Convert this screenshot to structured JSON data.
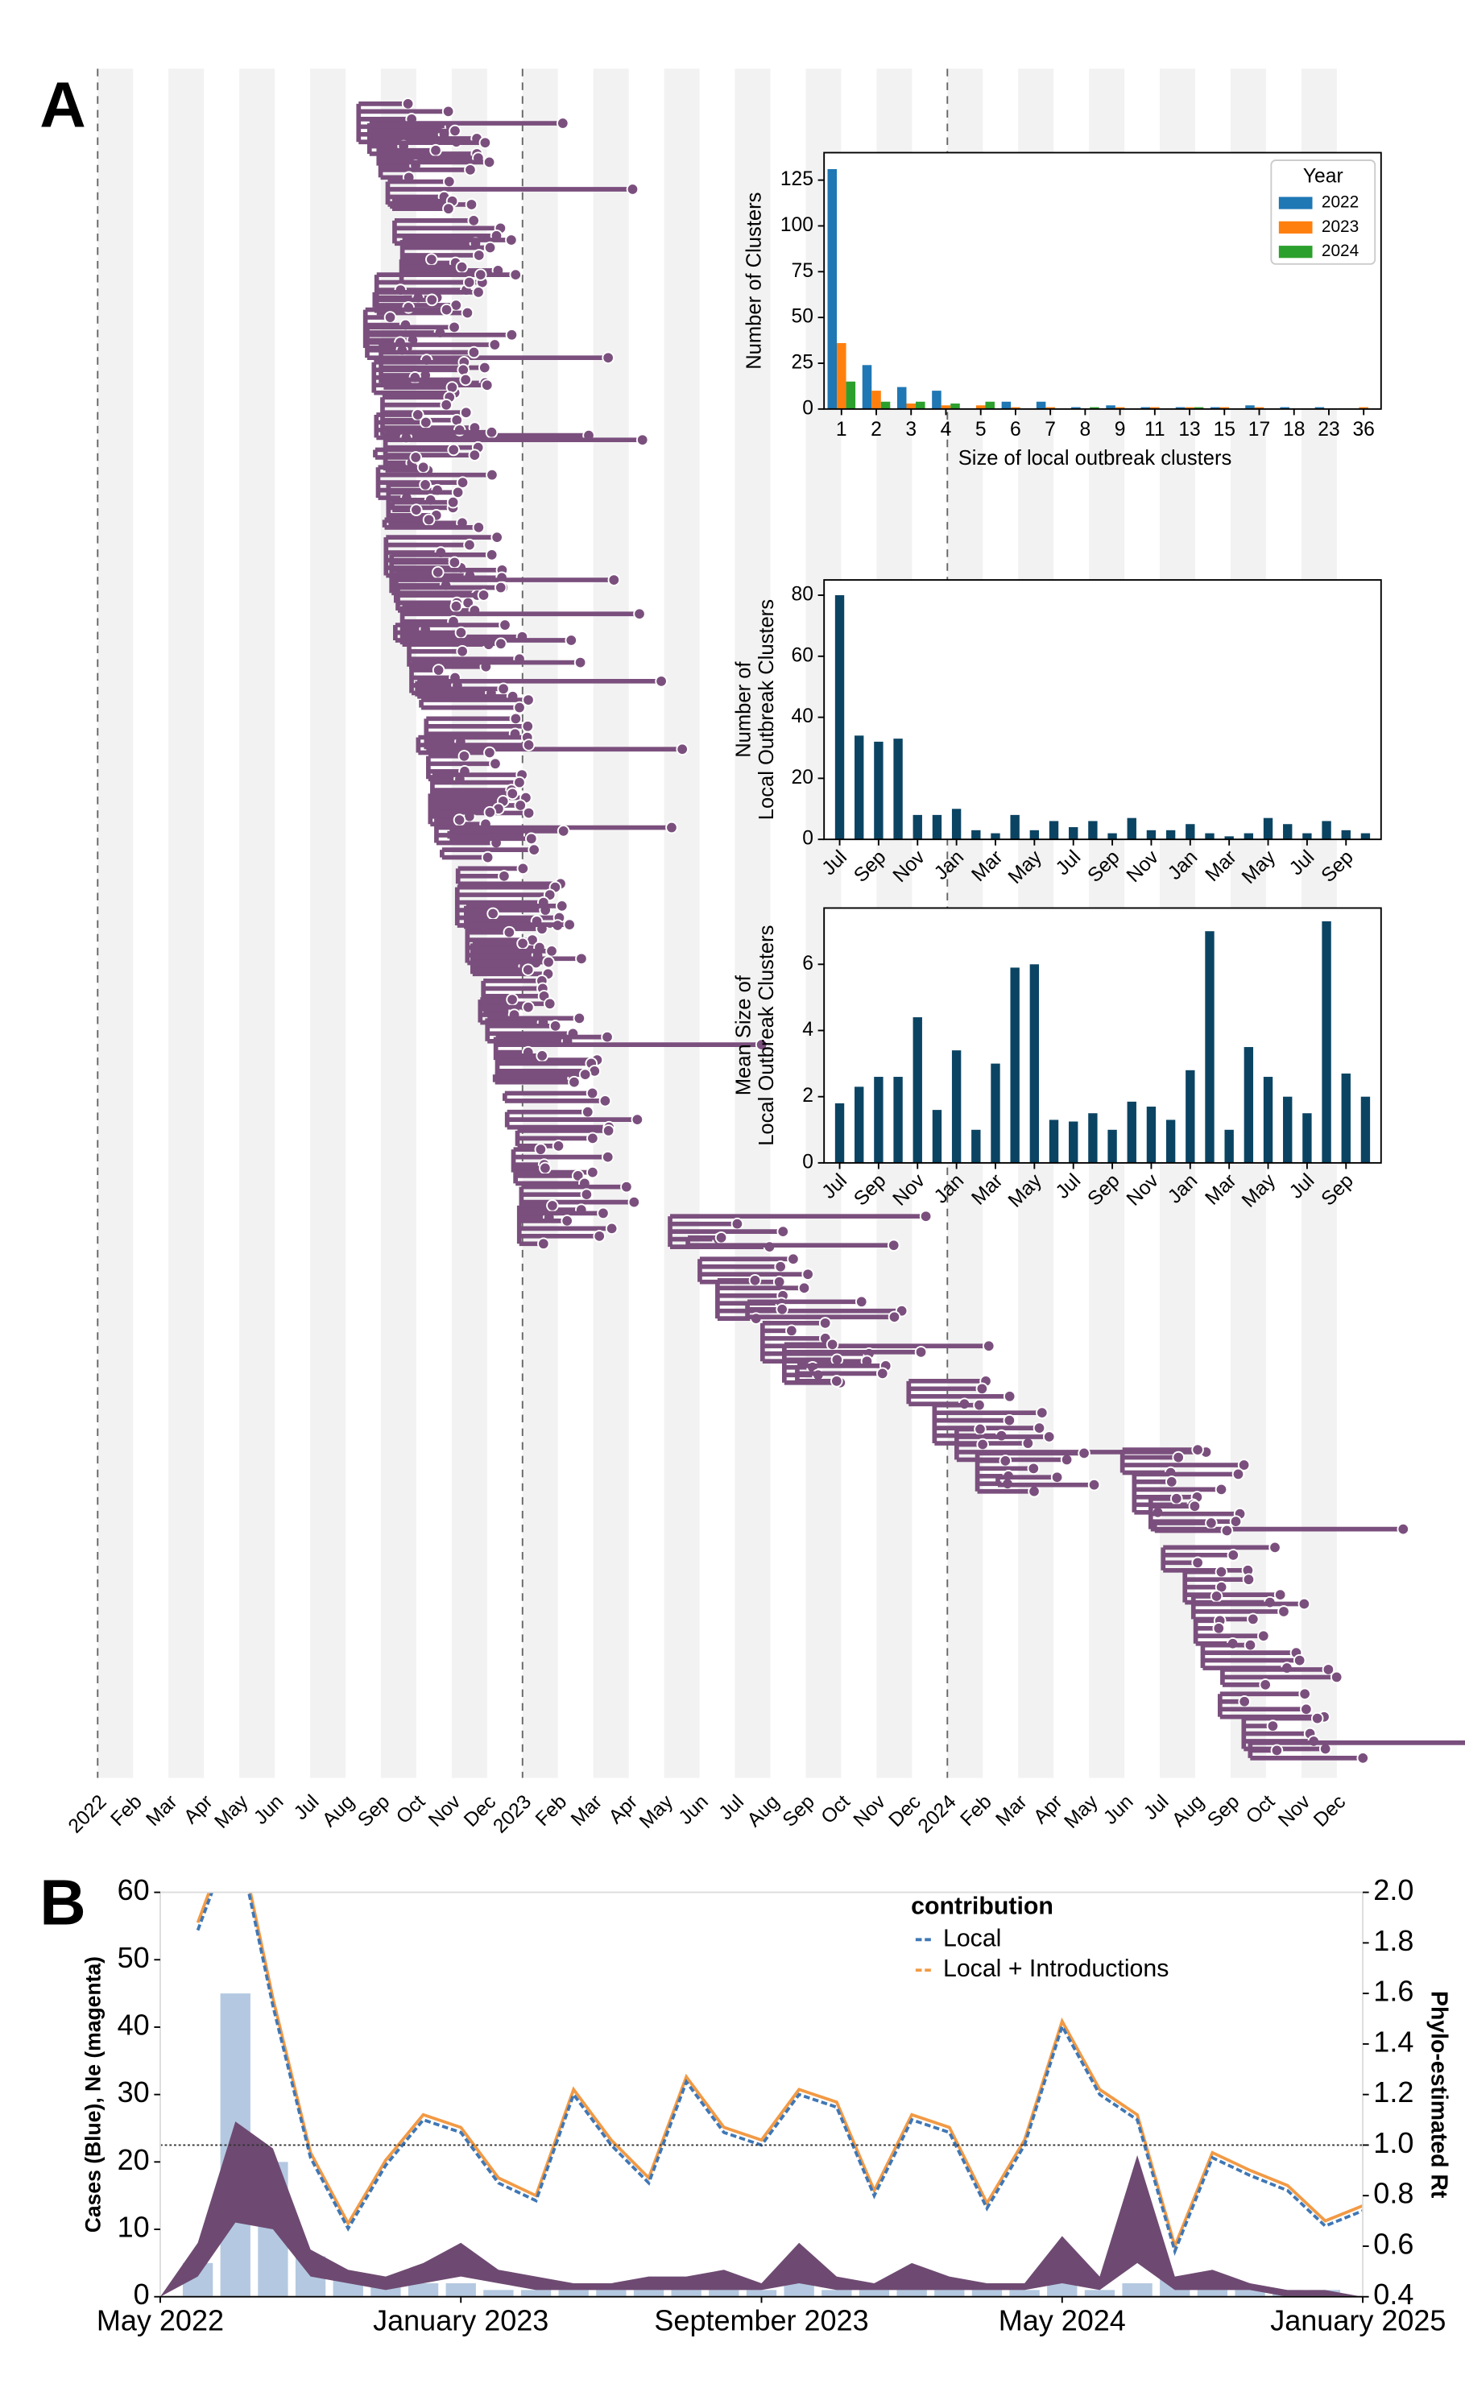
{
  "chart_data": [
    {
      "type": "timeline",
      "panel": "A",
      "color": "#7a4f7d",
      "categories": [
        "2022",
        "Feb",
        "Mar",
        "Apr",
        "May",
        "Jun",
        "Jul",
        "Aug",
        "Sep",
        "Oct",
        "Nov",
        "Dec",
        "2023",
        "Feb",
        "Mar",
        "Apr",
        "May",
        "Jun",
        "Jul",
        "Aug",
        "Sep",
        "Oct",
        "Nov",
        "Dec",
        "2024",
        "Feb",
        "Mar",
        "Apr",
        "May",
        "Jun",
        "Jul",
        "Aug",
        "Sep",
        "Oct",
        "Nov",
        "Dec"
      ]
    },
    {
      "type": "grouped_bar",
      "xlabel": "Size of local outbreak clusters",
      "ylabel": "Number of Clusters",
      "legend_title": "Year",
      "legend": "upper right",
      "categories": [
        1,
        2,
        3,
        4,
        5,
        6,
        7,
        8,
        9,
        11,
        13,
        15,
        17,
        18,
        23,
        36
      ],
      "series": [
        {
          "name": "2022",
          "color": "#1f77b4",
          "values": [
            131,
            24,
            12,
            10,
            0,
            4,
            4,
            1,
            2,
            1,
            1,
            1,
            2,
            1,
            1,
            0
          ]
        },
        {
          "name": "2023",
          "color": "#ff7f0e",
          "values": [
            36,
            10,
            3,
            2,
            2,
            1,
            1,
            0,
            1,
            1,
            1,
            1,
            1,
            0,
            0,
            1
          ]
        },
        {
          "name": "2024",
          "color": "#2ca02c",
          "values": [
            15,
            4,
            4,
            3,
            4,
            0,
            0,
            1,
            0,
            0,
            1,
            0,
            0,
            0,
            0,
            0
          ]
        }
      ],
      "ylim": [
        0,
        140
      ],
      "yticks": [
        0,
        25,
        50,
        75,
        100,
        125
      ]
    },
    {
      "type": "bar",
      "ylabel": [
        "Number of",
        "Local Outbreak Clusters"
      ],
      "color": "#0b4463",
      "categories": [
        "Jul",
        null,
        "Sep",
        null,
        "Nov",
        null,
        "Jan",
        null,
        "Mar",
        null,
        "May",
        null,
        "Jul",
        null,
        "Sep",
        null,
        "Nov",
        null,
        "Jan",
        null,
        "Mar",
        null,
        "May",
        null,
        "Jul",
        null,
        "Sep",
        null
      ],
      "values": [
        80,
        34,
        32,
        33,
        8,
        8,
        10,
        3,
        2,
        8,
        3,
        6,
        4,
        6,
        2,
        7,
        3,
        3,
        5,
        2,
        1,
        2,
        7,
        5,
        2,
        6,
        3,
        2
      ],
      "ylim": [
        0,
        85
      ],
      "yticks": [
        0,
        20,
        40,
        60,
        80
      ]
    },
    {
      "type": "bar",
      "ylabel": [
        "Mean Size of",
        "Local Outbreak Clusters"
      ],
      "color": "#0b4463",
      "categories": [
        "Jul",
        null,
        "Sep",
        null,
        "Nov",
        null,
        "Jan",
        null,
        "Mar",
        null,
        "May",
        null,
        "Jul",
        null,
        "Sep",
        null,
        "Nov",
        null,
        "Jan",
        null,
        "Mar",
        null,
        "May",
        null,
        "Jul",
        null,
        "Sep",
        null
      ],
      "values": [
        1.8,
        2.3,
        2.6,
        2.6,
        4.4,
        1.6,
        3.4,
        1.0,
        3.0,
        5.9,
        6.0,
        1.3,
        1.25,
        1.5,
        1.0,
        1.85,
        1.7,
        1.3,
        2.8,
        7.0,
        1.0,
        3.5,
        2.6,
        2.0,
        1.5,
        7.3,
        2.7,
        2.0
      ],
      "ylim": [
        0,
        7.7
      ],
      "yticks": [
        0,
        2,
        4,
        6
      ]
    },
    {
      "type": "line",
      "panel": "B",
      "ylabel": "Cases (Blue), Ne (magenta)",
      "y2label": "Phylo-estimated Rt",
      "legend_title": "contribution",
      "legend": "upper center",
      "x": [
        "2022-05",
        "2022-06",
        "2022-07",
        "2022-08",
        "2022-09",
        "2022-10",
        "2022-11",
        "2022-12",
        "2023-01",
        "2023-02",
        "2023-03",
        "2023-04",
        "2023-05",
        "2023-06",
        "2023-07",
        "2023-08",
        "2023-09",
        "2023-10",
        "2023-11",
        "2023-12",
        "2024-01",
        "2024-02",
        "2024-03",
        "2024-04",
        "2024-05",
        "2024-06",
        "2024-07",
        "2024-08",
        "2024-09",
        "2024-10",
        "2024-11",
        "2024-12",
        "2025-01"
      ],
      "series": [
        {
          "name": "Local",
          "color": "#3f77b5",
          "axis": "y2",
          "values": [
            null,
            1.85,
            2.25,
            1.55,
            0.95,
            0.67,
            0.92,
            1.1,
            1.05,
            0.85,
            0.78,
            1.2,
            1.0,
            0.85,
            1.25,
            1.05,
            1.0,
            1.2,
            1.15,
            0.8,
            1.1,
            1.05,
            0.75,
            1.0,
            1.47,
            1.2,
            1.1,
            0.58,
            0.95,
            0.88,
            0.82,
            0.68,
            0.74
          ]
        },
        {
          "name": "Local + Introductions",
          "color": "#f29a45",
          "axis": "y2",
          "values": [
            null,
            1.88,
            2.28,
            1.58,
            0.97,
            0.69,
            0.94,
            1.12,
            1.07,
            0.87,
            0.8,
            1.22,
            1.02,
            0.87,
            1.27,
            1.07,
            1.02,
            1.22,
            1.17,
            0.82,
            1.12,
            1.07,
            0.77,
            1.02,
            1.49,
            1.22,
            1.12,
            0.6,
            0.97,
            0.9,
            0.84,
            0.7,
            0.76
          ]
        }
      ],
      "cases": {
        "color": "#a7bfdc",
        "values": [
          0,
          5,
          45,
          20,
          6,
          3,
          2,
          2,
          2,
          1,
          1,
          1,
          1,
          1,
          1,
          1,
          1,
          2,
          1,
          1,
          1,
          1,
          1,
          1,
          2,
          1,
          2,
          3,
          1,
          1,
          1,
          1,
          0
        ]
      },
      "ne": {
        "color": "#6e4a72",
        "upper": [
          0,
          8,
          26,
          22,
          7,
          4,
          3,
          5,
          8,
          4,
          3,
          2,
          2,
          3,
          3,
          4,
          2,
          8,
          3,
          2,
          5,
          3,
          2,
          2,
          9,
          3,
          21,
          3,
          4,
          2,
          1,
          1,
          0
        ],
        "lower": [
          0,
          3,
          11,
          10,
          3,
          2,
          1,
          2,
          3,
          2,
          1,
          1,
          1,
          1,
          1,
          1,
          1,
          2,
          1,
          1,
          1,
          1,
          1,
          1,
          2,
          1,
          5,
          1,
          1,
          1,
          0,
          0,
          0
        ]
      },
      "reference_line_y2": 1,
      "xlim": [
        "2022-05",
        "2025-01"
      ],
      "xticks": [
        {
          "value": "2022-05",
          "label": "May 2022"
        },
        {
          "value": "2023-01",
          "label": "January 2023"
        },
        {
          "value": "2023-09",
          "label": "September 2023"
        },
        {
          "value": "2024-05",
          "label": "May 2024"
        },
        {
          "value": "2025-01",
          "label": "January 2025"
        }
      ],
      "ylim": [
        0,
        60
      ],
      "yticks": [
        0,
        10,
        20,
        30,
        40,
        50,
        60
      ],
      "y2lim": [
        0.4,
        2.0
      ],
      "y2ticks": [
        0.4,
        0.6,
        0.8,
        {
          "value": 1,
          "label": "1.0"
        },
        1.2,
        1.4,
        1.6,
        1.8,
        {
          "value": 2,
          "label": "2.0"
        }
      ]
    }
  ]
}
